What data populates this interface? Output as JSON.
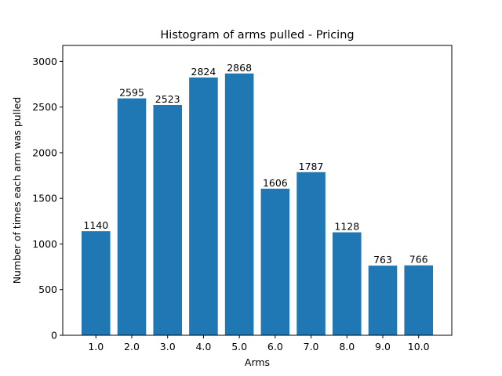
{
  "chart_data": {
    "type": "bar",
    "title": "Histogram of arms pulled - Pricing",
    "xlabel": "Arms",
    "ylabel": "Number of times each arm was pulled",
    "categories": [
      "1.0",
      "2.0",
      "3.0",
      "4.0",
      "5.0",
      "6.0",
      "7.0",
      "8.0",
      "9.0",
      "10.0"
    ],
    "values": [
      1140,
      2595,
      2523,
      2824,
      2868,
      1606,
      1787,
      1128,
      763,
      766
    ],
    "data_labels": [
      "1140",
      "2595",
      "2523",
      "2824",
      "2868",
      "1606",
      "1787",
      "1128",
      "763",
      "766"
    ],
    "yticks": [
      0,
      500,
      1000,
      1500,
      2000,
      2500,
      3000
    ],
    "ytick_labels": [
      "0",
      "500",
      "1000",
      "1500",
      "2000",
      "2500",
      "3000"
    ],
    "ylim": [
      0,
      3175
    ],
    "bar_color": "#1f77b4",
    "grid": false,
    "legend": "none"
  }
}
